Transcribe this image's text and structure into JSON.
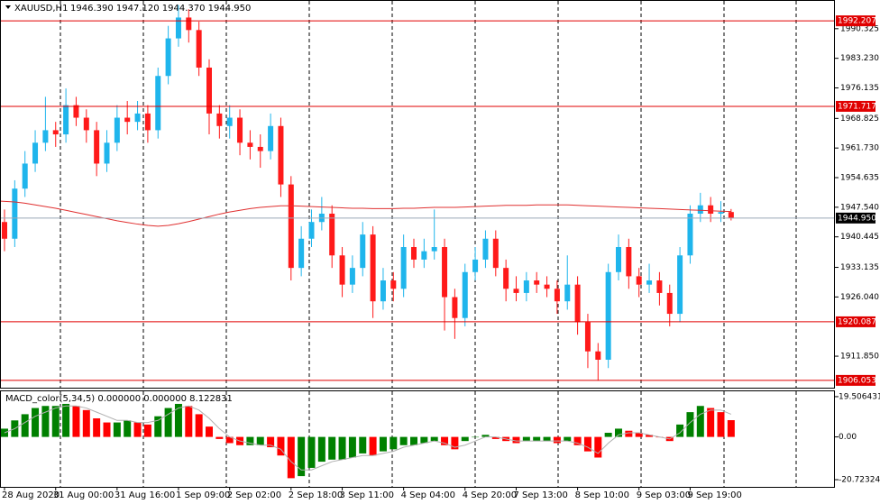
{
  "chart_data": {
    "type": "candlestick",
    "title": "XAUUSD,H1",
    "ohlc_text": "1946.390 1947.120 1944.370 1944.950",
    "categories": [
      "28 Aug 2020",
      null,
      null,
      null,
      null,
      "31 Aug 00:00",
      null,
      null,
      null,
      null,
      null,
      "31 Aug 16:00",
      null,
      null,
      null,
      null,
      null,
      "1 Sep 09:00",
      null,
      null,
      null,
      null,
      "2 Sep 02:00",
      null,
      null,
      null,
      null,
      null,
      "2 Sep 18:00",
      null,
      null,
      null,
      null,
      "3 Sep 11:00",
      null,
      null,
      null,
      null,
      null,
      "4 Sep 04:00",
      null,
      null,
      null,
      null,
      null,
      "4 Sep 20:00",
      null,
      null,
      null,
      null,
      "7 Sep 13:00",
      null,
      null,
      null,
      null,
      null,
      "8 Sep 10:00",
      null,
      null,
      null,
      null,
      null,
      "9 Sep 03:00",
      null,
      null,
      null,
      null,
      "9 Sep 19:00",
      null,
      null,
      null,
      null
    ],
    "open": [
      1944,
      1940,
      1952,
      1958,
      1963,
      1966,
      1965,
      1972,
      1969,
      1966,
      1958,
      1963,
      1969,
      1968,
      1970,
      1966,
      1979,
      1988,
      1993,
      1990,
      1981,
      1970,
      1967,
      1969,
      1963,
      1962,
      1961,
      1967,
      1953,
      1933,
      1940,
      1944,
      1946,
      1936,
      1929,
      1933,
      1941,
      1925,
      1930,
      1928,
      1938,
      1935,
      1937,
      1938,
      1926,
      1921,
      1932,
      1935,
      1940,
      1933,
      1928,
      1927,
      1930,
      1929,
      1928,
      1925,
      1929,
      1920,
      1913,
      1911,
      1932,
      1938,
      1931,
      1929,
      1930,
      1927,
      1922,
      1936,
      1946,
      1948,
      1946,
      1946.39
    ],
    "high": [
      1947,
      1954,
      1961,
      1966,
      1974,
      1968,
      1976,
      1974,
      1971,
      1968,
      1966,
      1972,
      1973,
      1973,
      1972,
      1981,
      1991,
      1996,
      1995,
      1992,
      1983,
      1972,
      1972,
      1971,
      1966,
      1965,
      1970,
      1969,
      1955,
      1943,
      1947,
      1950,
      1948,
      1938,
      1936,
      1944,
      1943,
      1933,
      1932,
      1941,
      1940,
      1940,
      1947,
      1940,
      1928,
      1934,
      1938,
      1942,
      1942,
      1935,
      1931,
      1932,
      1932,
      1931,
      1930,
      1936,
      1931,
      1922,
      1915,
      1934,
      1941,
      1940,
      1933,
      1934,
      1932,
      1929,
      1938,
      1948,
      1951,
      1950,
      1949,
      1947.12
    ],
    "low": [
      1937,
      1938,
      1950,
      1956,
      1961,
      1962,
      1963,
      1967,
      1963,
      1955,
      1956,
      1961,
      1965,
      1966,
      1963,
      1964,
      1977,
      1986,
      1987,
      1979,
      1965,
      1964,
      1964,
      1960,
      1959,
      1957,
      1959,
      1950,
      1930,
      1931,
      1938,
      1942,
      1933,
      1926,
      1927,
      1931,
      1921,
      1923,
      1925,
      1926,
      1933,
      1933,
      1935,
      1918,
      1916,
      1919,
      1930,
      1933,
      1931,
      1925,
      1925,
      1925,
      1927,
      1926,
      1922,
      1923,
      1917,
      1909,
      1906,
      1909,
      1930,
      1928,
      1926,
      1927,
      1924,
      1919,
      1920,
      1934,
      1944,
      1944,
      1944,
      1944.37
    ],
    "close": [
      1940,
      1952,
      1958,
      1963,
      1966,
      1965,
      1972,
      1969,
      1966,
      1958,
      1963,
      1969,
      1968,
      1970,
      1966,
      1979,
      1988,
      1993,
      1990,
      1981,
      1970,
      1967,
      1969,
      1963,
      1962,
      1961,
      1967,
      1953,
      1933,
      1940,
      1944,
      1946,
      1936,
      1929,
      1933,
      1941,
      1925,
      1930,
      1928,
      1938,
      1935,
      1937,
      1938,
      1926,
      1921,
      1932,
      1935,
      1940,
      1933,
      1928,
      1927,
      1930,
      1929,
      1928,
      1925,
      1929,
      1920,
      1913,
      1911,
      1932,
      1938,
      1931,
      1929,
      1930,
      1927,
      1922,
      1936,
      1946,
      1948,
      1946,
      1946.39,
      1944.95
    ],
    "ma_values": [
      1949,
      1948.8,
      1948.5,
      1948.1,
      1947.7,
      1947.3,
      1946.8,
      1946.3,
      1945.8,
      1945.3,
      1944.8,
      1944.3,
      1943.9,
      1943.5,
      1943.2,
      1943.0,
      1943.2,
      1943.6,
      1944.1,
      1944.7,
      1945.3,
      1945.9,
      1946.4,
      1946.8,
      1947.2,
      1947.5,
      1947.7,
      1947.9,
      1947.9,
      1947.8,
      1947.7,
      1947.6,
      1947.5,
      1947.4,
      1947.3,
      1947.3,
      1947.2,
      1947.2,
      1947.2,
      1947.3,
      1947.3,
      1947.4,
      1947.5,
      1947.5,
      1947.5,
      1947.6,
      1947.7,
      1947.8,
      1947.9,
      1948.0,
      1948.0,
      1948.0,
      1948.1,
      1948.1,
      1948.1,
      1948.1,
      1948.0,
      1947.9,
      1947.8,
      1947.7,
      1947.6,
      1947.5,
      1947.4,
      1947.3,
      1947.2,
      1947.1,
      1947.0,
      1946.9,
      1946.8,
      1946.7,
      1946.6,
      1946.5
    ],
    "ma_color": "#e03030",
    "up_color": "#1fb5ec",
    "down_color": "#ff1a1a",
    "ylim": [
      1904.3,
      1997.2
    ],
    "yticks": [
      {
        "value": 1990.325,
        "label": "1990.325"
      },
      {
        "value": 1983.23,
        "label": "1983.230"
      },
      {
        "value": 1976.135,
        "label": "1976.135"
      },
      {
        "value": 1968.825,
        "label": "1968.825"
      },
      {
        "value": 1961.73,
        "label": "1961.730"
      },
      {
        "value": 1954.635,
        "label": "1954.635"
      },
      {
        "value": 1947.54,
        "label": "1947.540"
      },
      {
        "value": 1940.445,
        "label": "1940.445"
      },
      {
        "value": 1933.135,
        "label": "1933.135"
      },
      {
        "value": 1926.04,
        "label": "1926.040"
      },
      {
        "value": 1911.85,
        "label": "1911.850"
      }
    ],
    "levels": [
      1992.207,
      1971.717,
      1920.087,
      1906.053
    ],
    "level_color": "#e00000",
    "current_price": {
      "value": 1944.95,
      "label": "1944.950"
    },
    "macd": {
      "label": "MACD_color(5,34,5) 0.000000 0.000000 8.122831",
      "values": [
        4,
        8,
        11,
        14,
        15,
        15,
        16,
        15,
        13,
        9,
        7,
        7,
        8,
        7,
        6,
        10,
        14,
        16,
        15,
        11,
        5,
        -1,
        -3,
        -4,
        -4,
        -4,
        -5,
        -9,
        -20,
        -19,
        -15,
        -12,
        -11,
        -11,
        -10,
        -8,
        -9,
        -7,
        -6,
        -4,
        -4,
        -3,
        -2,
        -4,
        -6,
        -2,
        0,
        1,
        -1,
        -2,
        -3,
        -2,
        -2,
        -2,
        -3,
        -2,
        -4,
        -7,
        -10,
        2,
        4,
        3,
        2,
        1,
        0,
        -2,
        6,
        12,
        15,
        14,
        12,
        8.122831
      ],
      "signal": [
        2,
        4,
        7,
        10,
        12,
        14,
        15,
        15,
        14,
        12,
        10,
        8,
        8,
        7,
        7,
        8,
        11,
        14,
        15,
        13,
        9,
        4,
        0,
        -2,
        -3,
        -4,
        -4,
        -6,
        -12,
        -16,
        -16,
        -14,
        -12,
        -11,
        -10,
        -9,
        -9,
        -8,
        -7,
        -5,
        -4,
        -3,
        -2,
        -3,
        -5,
        -4,
        -2,
        0,
        0,
        -1,
        -2,
        -2,
        -2,
        -2,
        -2,
        -2,
        -3,
        -5,
        -8,
        -3,
        1,
        2,
        2,
        1,
        0,
        -1,
        2,
        7,
        11,
        13,
        13,
        11
      ],
      "rise_color": "#008000",
      "fall_color": "#ff0000",
      "signal_color": "#b0b0b0",
      "ylim": [
        -24.2,
        22.1
      ],
      "yticks": [
        19.506431,
        {
          "value": 0,
          "label": "0.00"
        },
        -20.723248
      ]
    }
  }
}
